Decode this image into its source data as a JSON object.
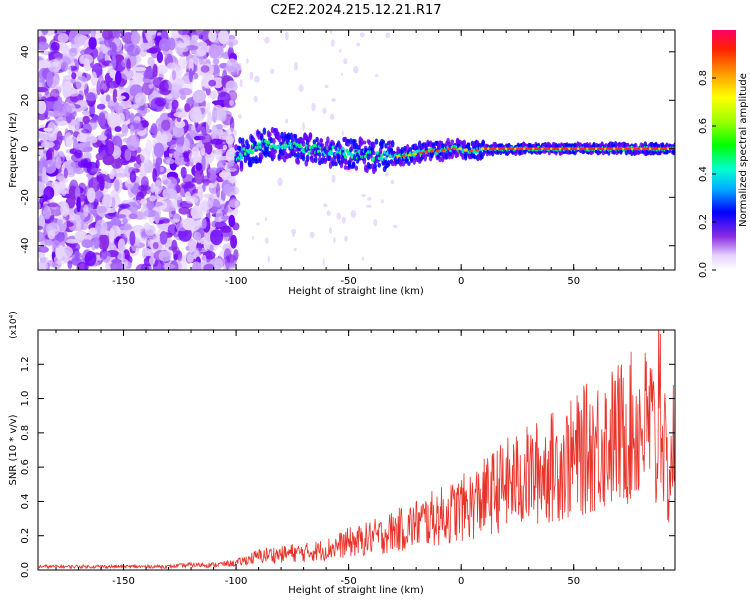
{
  "title": "C2E2.2024.215.12.21.R17",
  "chart_data": [
    {
      "type": "heatmap",
      "xlabel": "Height of straight line (km)",
      "ylabel": "Frequency (Hz)",
      "xlim": [
        -188,
        95
      ],
      "ylim": [
        -50,
        49
      ],
      "xticks": [
        -150,
        -100,
        -50,
        0,
        50
      ],
      "xtick_labels": [
        "-150",
        "-100",
        "-50",
        "0",
        "50"
      ],
      "yticks": [
        -40,
        -20,
        0,
        20,
        40
      ],
      "ytick_labels": [
        "-40",
        "-20",
        "0",
        "20",
        "40"
      ],
      "colorbar": {
        "label": "Normalized spectral amplitude",
        "range": [
          0,
          1
        ],
        "ticks": [
          0.0,
          0.2,
          0.4,
          0.6,
          0.8
        ],
        "tick_labels": [
          "0.0",
          "0.2",
          "0.4",
          "0.6",
          "0.8"
        ]
      },
      "noise_region_x": [
        -188,
        -100
      ],
      "ridge": [
        {
          "x": -100,
          "y": -3
        },
        {
          "x": -95,
          "y": -1
        },
        {
          "x": -90,
          "y": 1
        },
        {
          "x": -85,
          "y": 2
        },
        {
          "x": -80,
          "y": 2
        },
        {
          "x": -75,
          "y": 1
        },
        {
          "x": -70,
          "y": 0
        },
        {
          "x": -65,
          "y": 0
        },
        {
          "x": -60,
          "y": -1
        },
        {
          "x": -55,
          "y": -1
        },
        {
          "x": -50,
          "y": -2
        },
        {
          "x": -45,
          "y": -2
        },
        {
          "x": -40,
          "y": -3
        },
        {
          "x": -35,
          "y": -3
        },
        {
          "x": -30,
          "y": -3
        },
        {
          "x": -25,
          "y": -3
        },
        {
          "x": -20,
          "y": -2
        },
        {
          "x": -15,
          "y": -1
        },
        {
          "x": -10,
          "y": -1
        },
        {
          "x": -5,
          "y": 0
        },
        {
          "x": 0,
          "y": 0
        },
        {
          "x": 5,
          "y": -1
        },
        {
          "x": 10,
          "y": 0
        },
        {
          "x": 20,
          "y": 0
        },
        {
          "x": 30,
          "y": 0
        },
        {
          "x": 40,
          "y": 0
        },
        {
          "x": 50,
          "y": 0
        },
        {
          "x": 60,
          "y": 0
        },
        {
          "x": 70,
          "y": 0
        },
        {
          "x": 80,
          "y": 0
        },
        {
          "x": 90,
          "y": 0
        },
        {
          "x": 95,
          "y": 0
        }
      ]
    },
    {
      "type": "line",
      "xlabel": "Height of straight line (km)",
      "ylabel": "SNR (10 * v/v)",
      "y_multiplier": "(x10⁴)",
      "xlim": [
        -188,
        95
      ],
      "ylim": [
        0,
        1.4
      ],
      "xticks": [
        -150,
        -100,
        -50,
        0,
        50
      ],
      "xtick_labels": [
        "-150",
        "-100",
        "-50",
        "0",
        "50"
      ],
      "yticks": [
        0.0,
        0.2,
        0.4,
        0.6,
        0.8,
        1.0,
        1.2
      ],
      "ytick_labels": [
        "0.0",
        "0.2",
        "0.4",
        "0.6",
        "0.8",
        "1.0",
        "1.2"
      ],
      "line_color": "#e8332a",
      "series": [
        {
          "x": [
            -188,
            -180,
            -170,
            -160,
            -150,
            -140,
            -130,
            -120,
            -110,
            -100,
            -95,
            -90,
            -85,
            -80,
            -75,
            -70,
            -65,
            -60,
            -55,
            -50,
            -45,
            -40,
            -35,
            -30,
            -25,
            -20,
            -15,
            -10,
            -5,
            0,
            5,
            10,
            15,
            20,
            25,
            30,
            35,
            40,
            45,
            50,
            55,
            60,
            65,
            70,
            75,
            80,
            85,
            87,
            88,
            89,
            90,
            92,
            95
          ],
          "values": [
            0.02,
            0.02,
            0.02,
            0.02,
            0.02,
            0.02,
            0.02,
            0.03,
            0.03,
            0.04,
            0.06,
            0.08,
            0.09,
            0.09,
            0.1,
            0.1,
            0.11,
            0.12,
            0.14,
            0.16,
            0.17,
            0.19,
            0.2,
            0.23,
            0.24,
            0.27,
            0.29,
            0.31,
            0.33,
            0.36,
            0.38,
            0.42,
            0.46,
            0.5,
            0.52,
            0.55,
            0.57,
            0.6,
            0.62,
            0.65,
            0.7,
            0.73,
            0.76,
            0.79,
            0.82,
            0.84,
            0.86,
            0.55,
            1.38,
            0.9,
            0.72,
            0.5,
            0.8
          ]
        }
      ]
    }
  ]
}
